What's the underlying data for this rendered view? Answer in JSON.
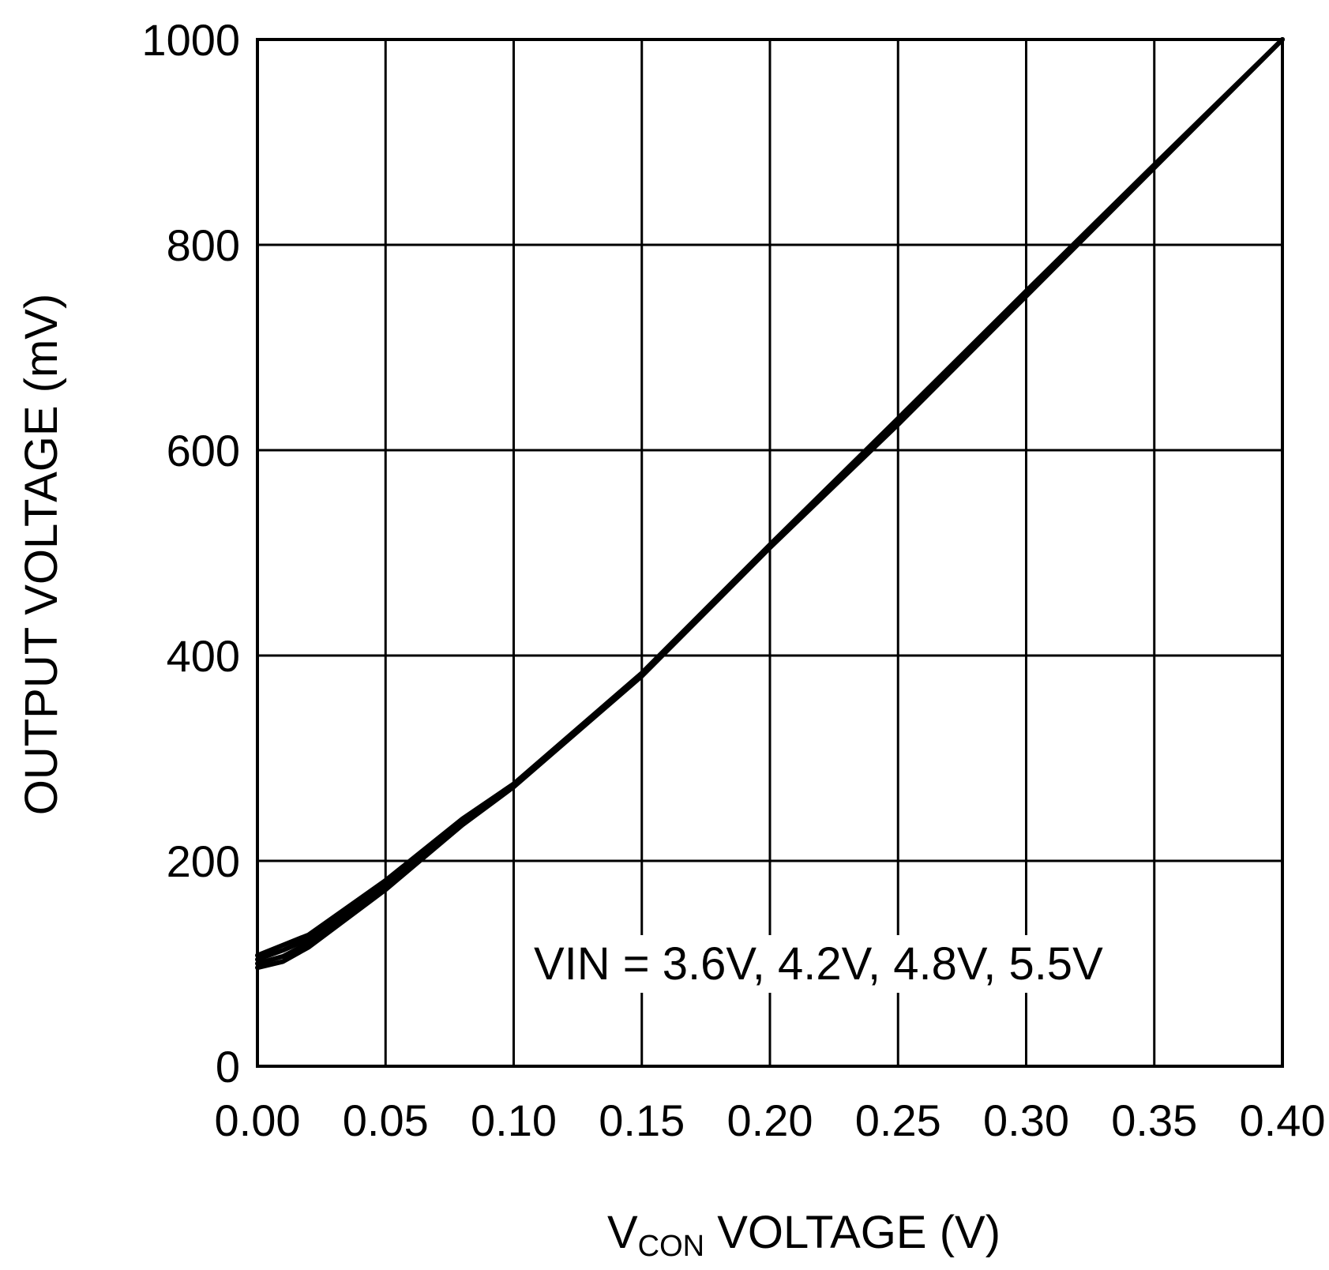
{
  "chart_data": {
    "type": "line",
    "title": "",
    "xlabel": {
      "main": "V",
      "sub": "CON",
      "rest": " VOLTAGE (V)"
    },
    "ylabel": "OUTPUT VOLTAGE (mV)",
    "xlim": [
      0,
      0.4
    ],
    "ylim": [
      0,
      1000
    ],
    "x_ticks": [
      "0.00",
      "0.05",
      "0.10",
      "0.15",
      "0.20",
      "0.25",
      "0.30",
      "0.35",
      "0.40"
    ],
    "y_ticks": [
      "0",
      "200",
      "400",
      "600",
      "800",
      "1000"
    ],
    "grid": true,
    "annotation": "VIN = 3.6V, 4.2V, 4.8V, 5.5V",
    "line_color": "#000000",
    "series": [
      {
        "name": "3.6V",
        "x": [
          0,
          0.01,
          0.02,
          0.05,
          0.08,
          0.1,
          0.15,
          0.2,
          0.25,
          0.3,
          0.35,
          0.4
        ],
        "y": [
          96,
          102,
          116,
          172,
          235,
          272,
          380,
          505,
          625,
          750,
          875,
          1000
        ]
      },
      {
        "name": "4.2V",
        "x": [
          0,
          0.01,
          0.02,
          0.05,
          0.08,
          0.1,
          0.15,
          0.2,
          0.25,
          0.3,
          0.35,
          0.4
        ],
        "y": [
          100,
          107,
          120,
          175,
          237,
          273,
          381,
          506,
          627,
          752,
          876,
          1000
        ]
      },
      {
        "name": "4.8V",
        "x": [
          0,
          0.01,
          0.02,
          0.05,
          0.08,
          0.1,
          0.15,
          0.2,
          0.25,
          0.3,
          0.35,
          0.4
        ],
        "y": [
          104,
          113,
          124,
          178,
          239,
          274,
          382,
          507,
          629,
          753,
          877,
          1000
        ]
      },
      {
        "name": "5.5V",
        "x": [
          0,
          0.01,
          0.02,
          0.05,
          0.08,
          0.1,
          0.15,
          0.2,
          0.25,
          0.3,
          0.35,
          0.4
        ],
        "y": [
          108,
          118,
          128,
          181,
          241,
          275,
          383,
          508,
          631,
          755,
          878,
          1000
        ]
      }
    ]
  }
}
